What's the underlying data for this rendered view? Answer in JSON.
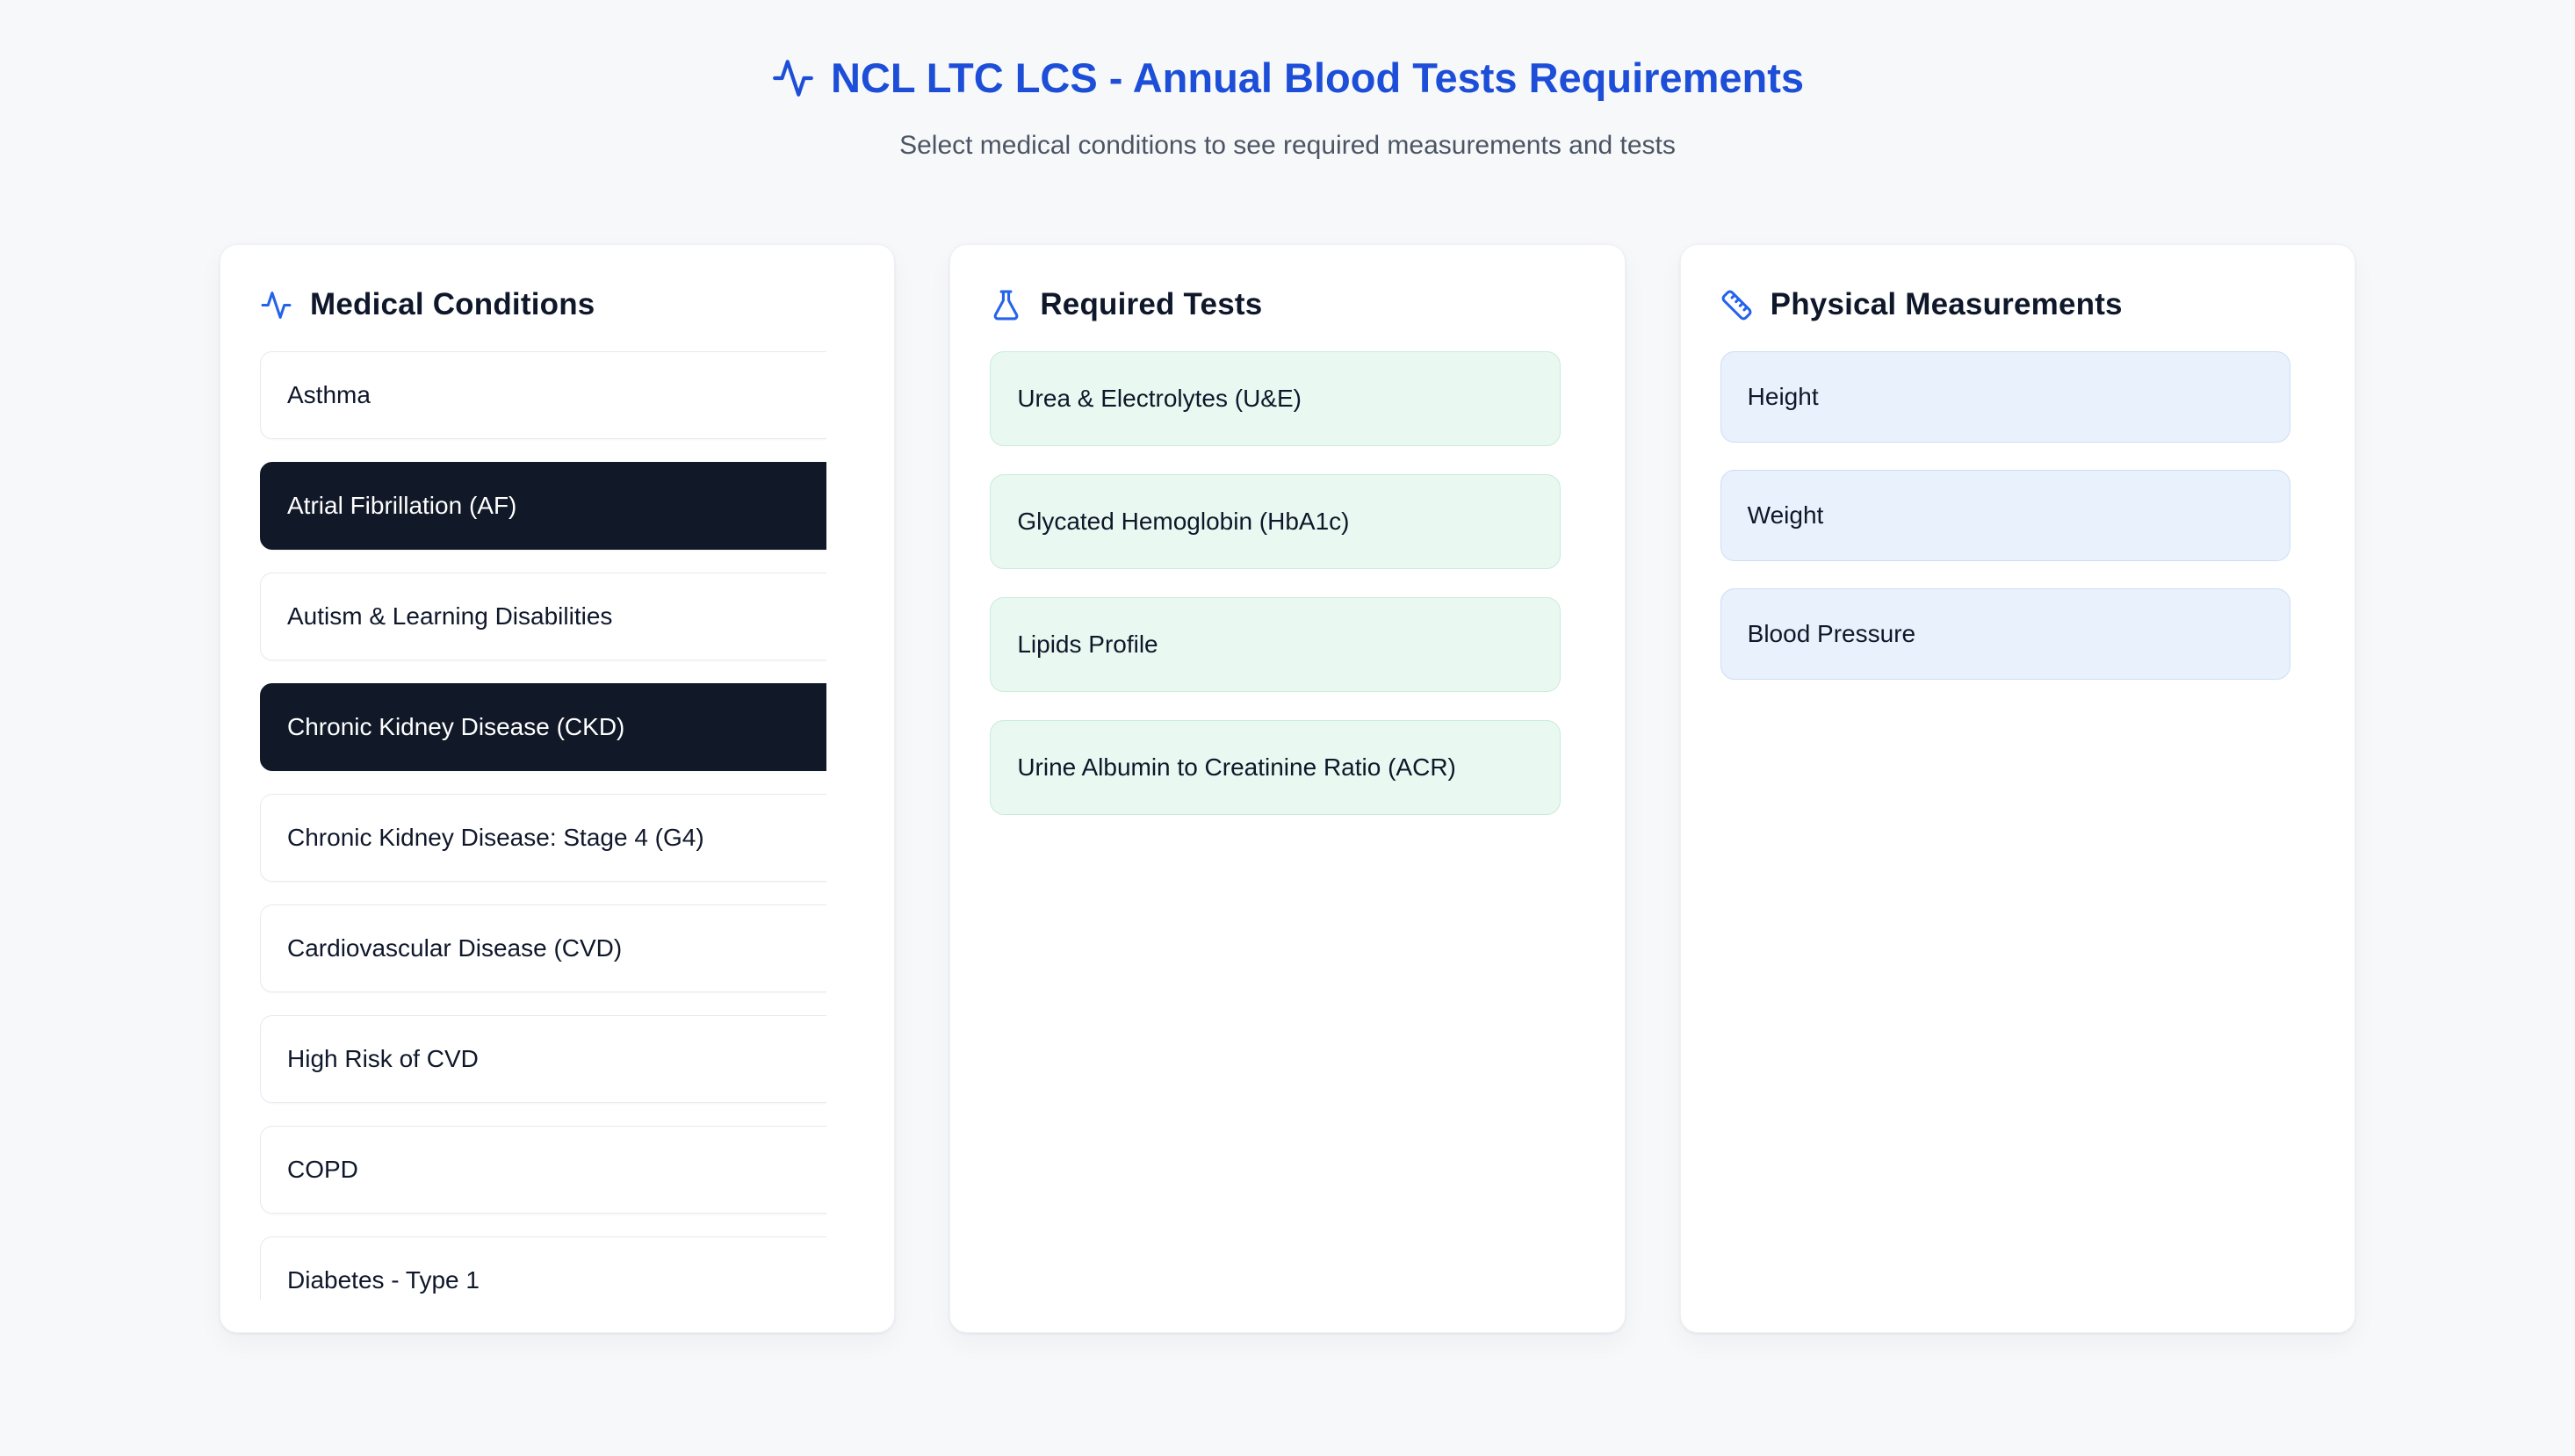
{
  "header": {
    "title": "NCL LTC LCS - Annual Blood Tests Requirements",
    "subtitle": "Select medical conditions to see required measurements and tests",
    "icon": "pulse-icon"
  },
  "panels": {
    "conditions": {
      "title": "Medical Conditions",
      "icon": "pulse-icon",
      "items": [
        {
          "label": "Asthma",
          "selected": false
        },
        {
          "label": "Atrial Fibrillation (AF)",
          "selected": true
        },
        {
          "label": "Autism & Learning Disabilities",
          "selected": false
        },
        {
          "label": "Chronic Kidney Disease (CKD)",
          "selected": true
        },
        {
          "label": "Chronic Kidney Disease: Stage 4 (G4)",
          "selected": false
        },
        {
          "label": "Cardiovascular Disease (CVD)",
          "selected": false
        },
        {
          "label": "High Risk of CVD",
          "selected": false
        },
        {
          "label": "COPD",
          "selected": false
        },
        {
          "label": "Diabetes - Type 1",
          "selected": false
        }
      ]
    },
    "tests": {
      "title": "Required Tests",
      "icon": "flask-icon",
      "items": [
        "Urea & Electrolytes (U&E)",
        "Glycated Hemoglobin (HbA1c)",
        "Lipids Profile",
        "Urine Albumin to Creatinine Ratio (ACR)"
      ]
    },
    "measurements": {
      "title": "Physical Measurements",
      "icon": "ruler-icon",
      "items": [
        "Height",
        "Weight",
        "Blood Pressure"
      ]
    }
  },
  "colors": {
    "page_background": "#f7f8fa",
    "title_blue": "#1d4ed8",
    "icon_blue": "#2563eb",
    "subtitle_gray": "#4b5563",
    "selected_condition_bg": "#111827",
    "test_card_bg": "#e9f8f0",
    "test_card_border": "#c9ecd8",
    "measurement_card_bg": "#e9f1fc",
    "measurement_card_border": "#cdddf5",
    "text_dark": "#0f172a"
  }
}
